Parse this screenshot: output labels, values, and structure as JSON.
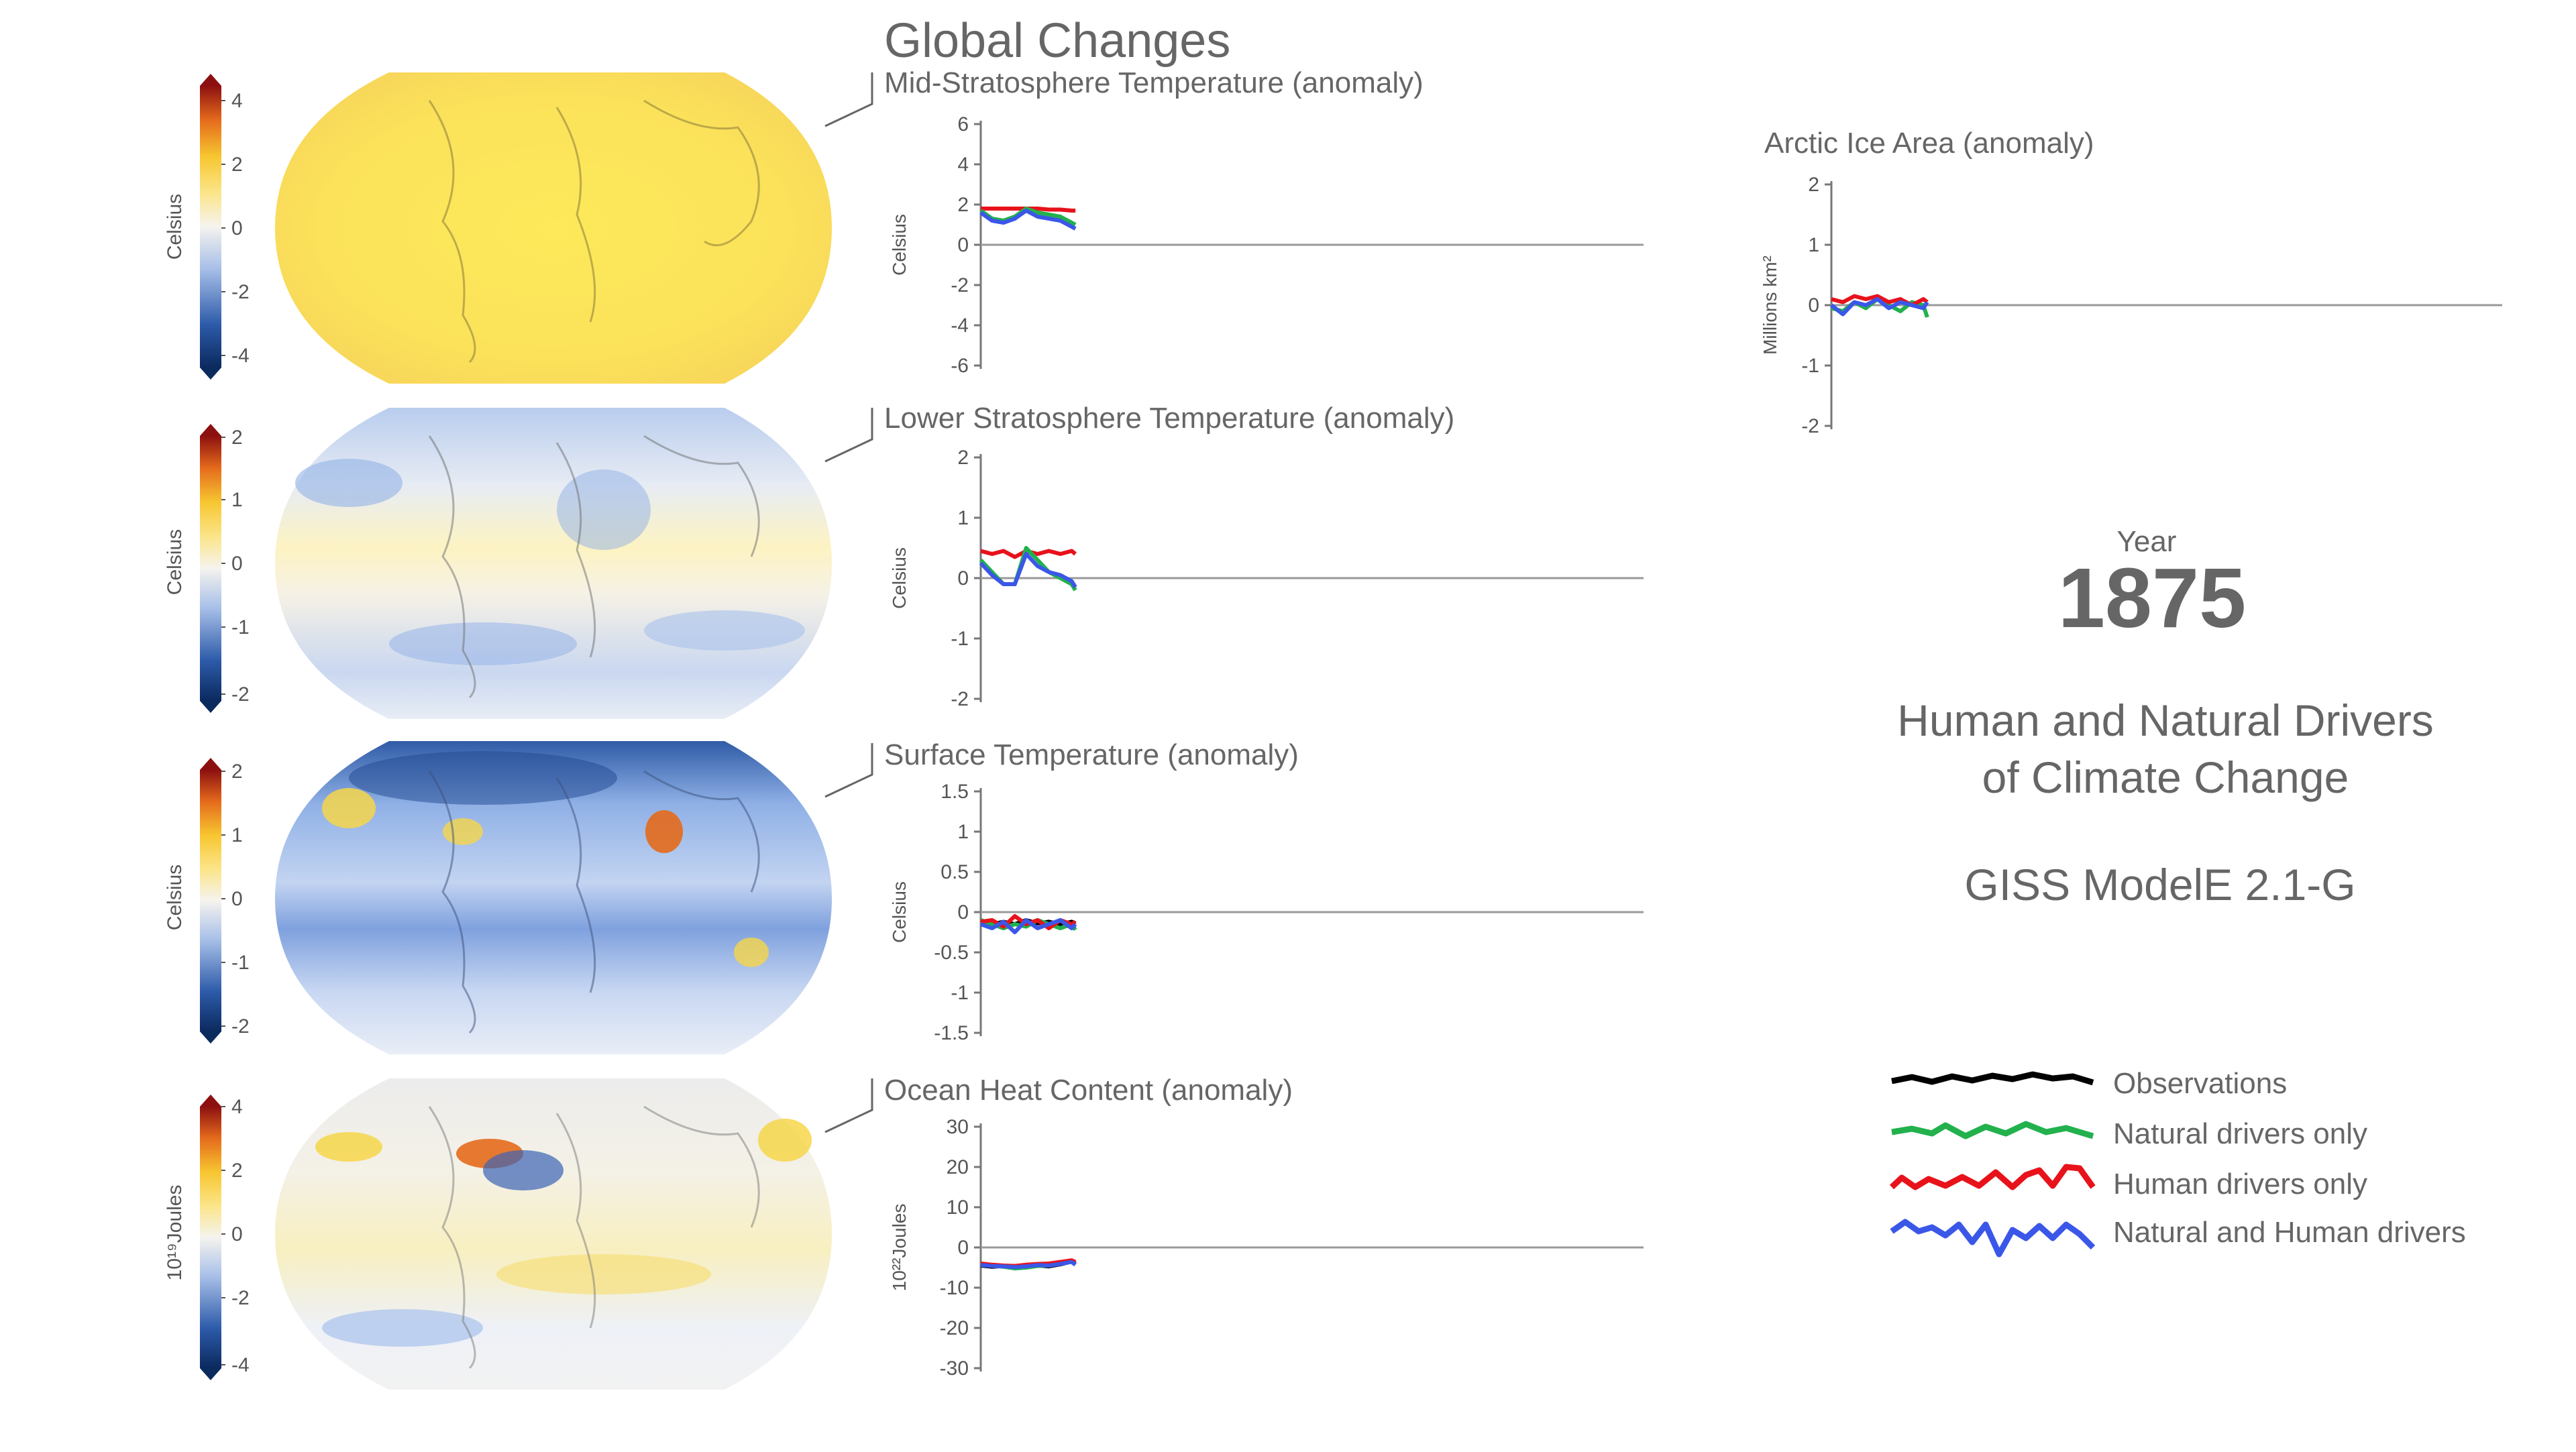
{
  "page_title": "Global Changes",
  "year_label": "Year",
  "year_value": "1875",
  "subtitle_lines": [
    "Human and Natural Drivers",
    "of Climate Change"
  ],
  "model_name": "GISS ModelE 2.1-G",
  "legend": [
    {
      "label": "Observations",
      "color": "#000000"
    },
    {
      "label": "Natural drivers only",
      "color": "#22b14c"
    },
    {
      "label": "Human drivers only",
      "color": "#e8121b"
    },
    {
      "label": "Natural and Human drivers",
      "color": "#3b57e8"
    }
  ],
  "maps": [
    {
      "colorbar_label": "Celsius",
      "colorbar_ticks": [
        "4",
        "2",
        "0",
        "-2",
        "-4"
      ],
      "style": "warm"
    },
    {
      "colorbar_label": "Celsius",
      "colorbar_ticks": [
        "2",
        "1",
        "0",
        "-1",
        "-2"
      ],
      "style": "mixed-cool"
    },
    {
      "colorbar_label": "Celsius",
      "colorbar_ticks": [
        "2",
        "1",
        "0",
        "-1",
        "-2"
      ],
      "style": "cool"
    },
    {
      "colorbar_label": "10¹⁹Joules",
      "colorbar_ticks": [
        "4",
        "2",
        "0",
        "-2",
        "-4"
      ],
      "style": "neutral"
    }
  ],
  "chart_data": [
    {
      "type": "line",
      "title": "Mid-Stratosphere Temperature (anomaly)",
      "ylabel": "Celsius",
      "ylim": [
        -6,
        6
      ],
      "yticks": [
        "6",
        "4",
        "2",
        "0",
        "-2",
        "-4",
        "-6"
      ],
      "x": [
        1850,
        1853,
        1856,
        1859,
        1862,
        1865,
        1868,
        1871,
        1874,
        1875
      ],
      "series": [
        {
          "color": "#e8121b",
          "values": [
            1.8,
            1.8,
            1.8,
            1.8,
            1.8,
            1.8,
            1.75,
            1.75,
            1.7,
            1.7
          ]
        },
        {
          "color": "#22b14c",
          "values": [
            1.7,
            1.3,
            1.2,
            1.4,
            1.8,
            1.6,
            1.5,
            1.4,
            1.1,
            1.0
          ]
        },
        {
          "color": "#3b57e8",
          "values": [
            1.6,
            1.2,
            1.1,
            1.3,
            1.7,
            1.4,
            1.3,
            1.2,
            0.9,
            0.8
          ]
        }
      ]
    },
    {
      "type": "line",
      "title": "Lower Stratosphere Temperature (anomaly)",
      "ylabel": "Celsius",
      "ylim": [
        -2,
        2
      ],
      "yticks": [
        "2",
        "1",
        "0",
        "-1",
        "-2"
      ],
      "x": [
        1850,
        1853,
        1856,
        1859,
        1862,
        1865,
        1868,
        1871,
        1874,
        1875
      ],
      "series": [
        {
          "color": "#e8121b",
          "values": [
            0.45,
            0.4,
            0.45,
            0.35,
            0.45,
            0.4,
            0.45,
            0.4,
            0.45,
            0.4
          ]
        },
        {
          "color": "#22b14c",
          "values": [
            0.3,
            0.1,
            -0.1,
            -0.1,
            0.5,
            0.3,
            0.1,
            0.0,
            -0.1,
            -0.2
          ]
        },
        {
          "color": "#3b57e8",
          "values": [
            0.25,
            0.05,
            -0.1,
            -0.1,
            0.4,
            0.2,
            0.1,
            0.05,
            -0.05,
            -0.15
          ]
        }
      ]
    },
    {
      "type": "line",
      "title": "Surface Temperature (anomaly)",
      "ylabel": "Celsius",
      "ylim": [
        -1.5,
        1.5
      ],
      "yticks": [
        "1.5",
        "1",
        "0.5",
        "0",
        "-0.5",
        "-1",
        "-1.5"
      ],
      "x": [
        1850,
        1853,
        1856,
        1859,
        1862,
        1865,
        1868,
        1871,
        1874,
        1875
      ],
      "series": [
        {
          "color": "#000000",
          "values": [
            -0.1,
            -0.15,
            -0.12,
            -0.15,
            -0.1,
            -0.14,
            -0.12,
            -0.15,
            -0.12,
            -0.14
          ]
        },
        {
          "color": "#22b14c",
          "values": [
            -0.1,
            -0.15,
            -0.2,
            -0.15,
            -0.18,
            -0.1,
            -0.15,
            -0.2,
            -0.15,
            -0.22
          ]
        },
        {
          "color": "#e8121b",
          "values": [
            -0.12,
            -0.1,
            -0.18,
            -0.05,
            -0.15,
            -0.1,
            -0.2,
            -0.1,
            -0.15,
            -0.12
          ]
        },
        {
          "color": "#3b57e8",
          "values": [
            -0.15,
            -0.2,
            -0.12,
            -0.25,
            -0.1,
            -0.2,
            -0.15,
            -0.1,
            -0.2,
            -0.15
          ]
        }
      ]
    },
    {
      "type": "line",
      "title": "Ocean Heat Content (anomaly)",
      "ylabel": "10²²Joules",
      "ylim": [
        -30,
        30
      ],
      "yticks": [
        "30",
        "20",
        "10",
        "0",
        "-10",
        "-20",
        "-30"
      ],
      "x": [
        1850,
        1853,
        1856,
        1859,
        1862,
        1865,
        1868,
        1871,
        1874,
        1875
      ],
      "series": [
        {
          "color": "#000000",
          "values": [
            -4.5,
            -4.8,
            -4.6,
            -5.0,
            -4.8,
            -4.5,
            -4.7,
            -4.2,
            -3.5,
            -4.0
          ]
        },
        {
          "color": "#22b14c",
          "values": [
            -4.2,
            -4.5,
            -4.8,
            -5.2,
            -5.0,
            -4.6,
            -4.5,
            -4.0,
            -3.5,
            -4.2
          ]
        },
        {
          "color": "#e8121b",
          "values": [
            -4.0,
            -4.3,
            -4.5,
            -4.6,
            -4.3,
            -4.1,
            -4.0,
            -3.6,
            -3.2,
            -3.6
          ]
        },
        {
          "color": "#3b57e8",
          "values": [
            -4.4,
            -4.6,
            -4.7,
            -4.9,
            -4.7,
            -4.4,
            -4.5,
            -4.1,
            -3.6,
            -4.3
          ]
        }
      ]
    },
    {
      "type": "line",
      "title": "Arctic Ice Area (anomaly)",
      "ylabel": "Millions km²",
      "ylim": [
        -2,
        2
      ],
      "yticks": [
        "2",
        "1",
        "0",
        "-1",
        "-2"
      ],
      "x": [
        1850,
        1853,
        1856,
        1859,
        1862,
        1865,
        1868,
        1871,
        1874,
        1875
      ],
      "series": [
        {
          "color": "#22b14c",
          "values": [
            -0.05,
            -0.1,
            0.05,
            -0.05,
            0.1,
            0.0,
            -0.1,
            0.05,
            0.0,
            -0.2
          ]
        },
        {
          "color": "#e8121b",
          "values": [
            0.1,
            0.05,
            0.15,
            0.1,
            0.15,
            0.05,
            0.1,
            0.0,
            0.1,
            0.05
          ]
        },
        {
          "color": "#3b57e8",
          "values": [
            0.0,
            -0.15,
            0.05,
            0.0,
            0.1,
            -0.05,
            0.05,
            0.0,
            -0.05,
            0.05
          ]
        }
      ]
    }
  ]
}
